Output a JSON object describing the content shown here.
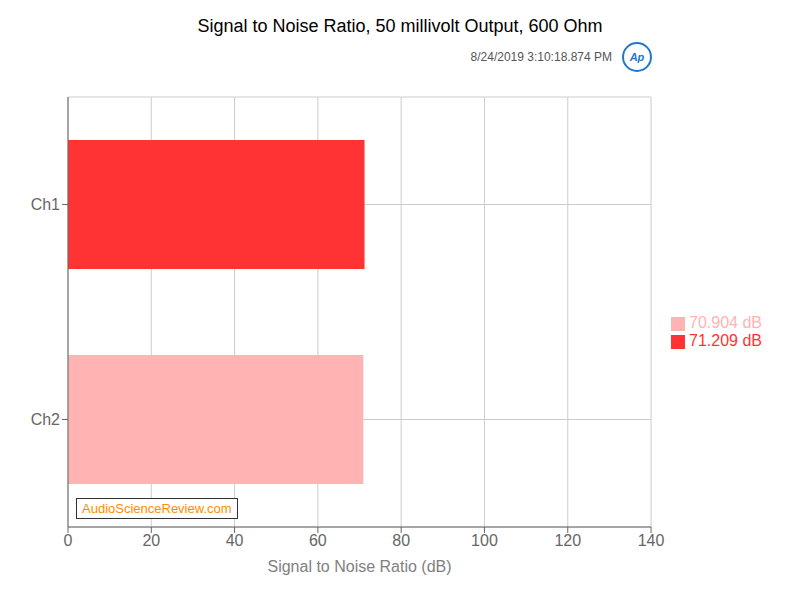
{
  "chart_data": {
    "type": "bar",
    "orientation": "horizontal",
    "stacked": true,
    "title": "Signal to Noise Ratio, 50 millivolt Output, 600 Ohm",
    "subtitle": "8/24/2019 3:10:18.874 PM",
    "xlabel": "Signal to Noise Ratio (dB)",
    "categories": [
      "Ch1",
      "Ch2"
    ],
    "series": [
      {
        "name": "71.209 dB",
        "color": "#FF3333",
        "values": [
          71.209,
          null
        ]
      },
      {
        "name": "70.904 dB",
        "color": "#FFB3B3",
        "values": [
          null,
          70.904
        ]
      }
    ],
    "xlim": [
      0,
      140
    ],
    "xticks": [
      0,
      20,
      40,
      60,
      80,
      100,
      120,
      140
    ],
    "grid": true,
    "legend": "right",
    "annotations": [
      "AudioScienceReview.com",
      "Ap"
    ]
  }
}
